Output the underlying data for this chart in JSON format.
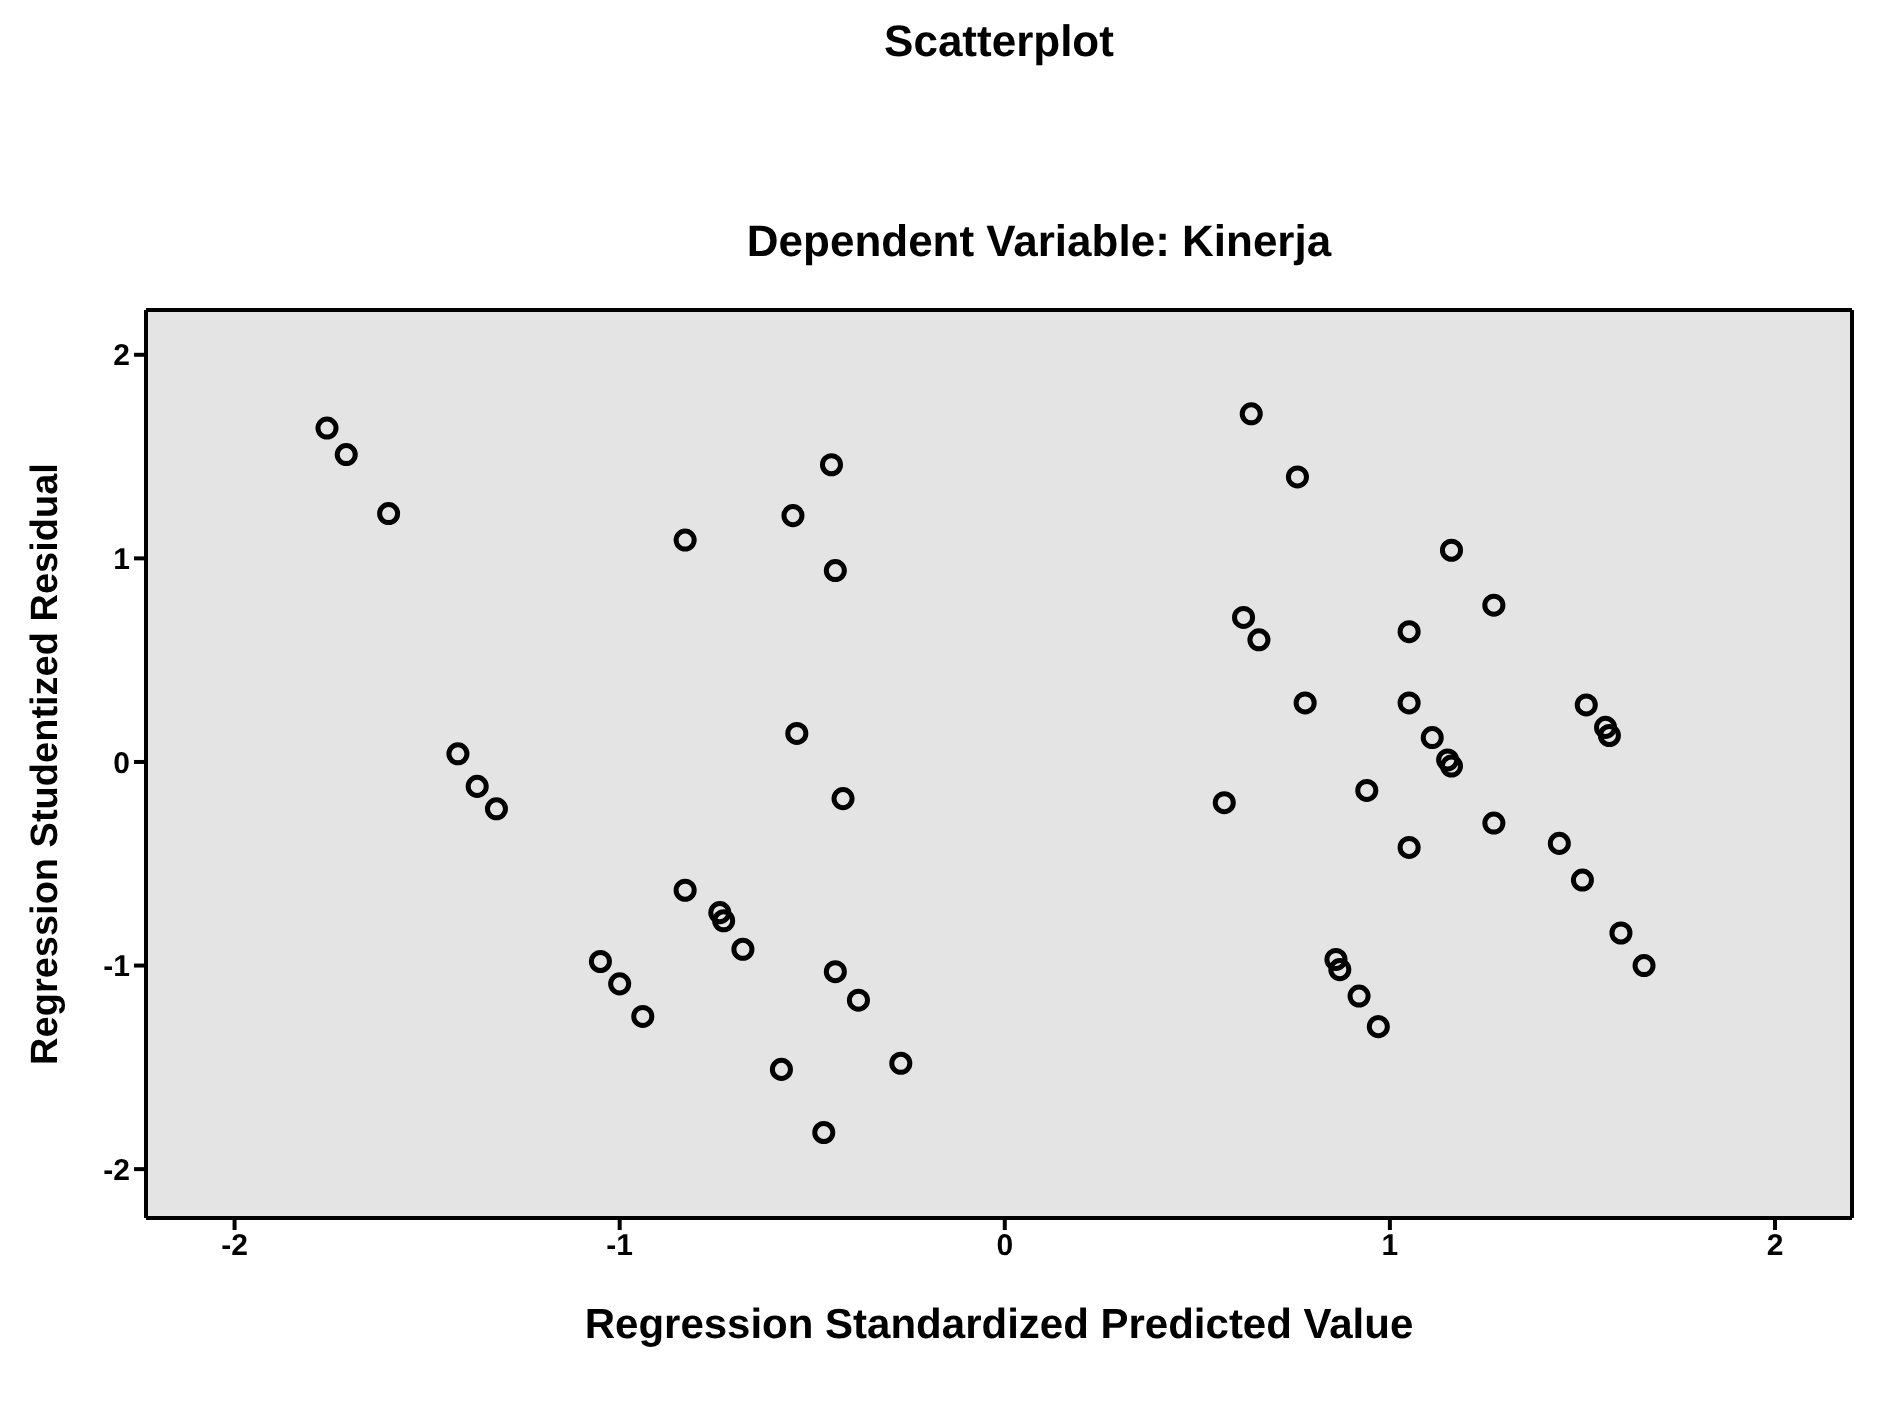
{
  "chart_data": {
    "type": "scatter",
    "title": "Scatterplot",
    "subtitle": "Dependent Variable: Kinerja",
    "xlabel": "Regression Standardized Predicted Value",
    "ylabel": "Regression Studentized Residual",
    "x": [
      -1.76,
      -1.71,
      -1.6,
      -1.42,
      -1.37,
      -1.32,
      -1.05,
      -1.0,
      -0.94,
      -0.83,
      -0.74,
      -0.73,
      -0.68,
      -0.83,
      -0.55,
      -0.45,
      -0.44,
      -0.54,
      -0.42,
      -0.44,
      -0.38,
      -0.58,
      -0.47,
      -0.27,
      0.64,
      0.76,
      1.16,
      1.27,
      0.62,
      0.66,
      1.05,
      0.78,
      1.05,
      1.51,
      1.56,
      1.57,
      1.11,
      1.15,
      1.16,
      0.57,
      0.94,
      1.27,
      1.05,
      1.44,
      1.5,
      1.6,
      1.66,
      0.86,
      0.87,
      0.92,
      0.97
    ],
    "series": [
      {
        "color": "#000000",
        "values": [
          1.64,
          1.51,
          1.22,
          0.04,
          -0.12,
          -0.23,
          -0.98,
          -1.09,
          -1.25,
          -0.63,
          -0.74,
          -0.78,
          -0.92,
          1.09,
          1.21,
          1.46,
          0.94,
          0.14,
          -0.18,
          -1.03,
          -1.17,
          -1.51,
          -1.82,
          -1.48,
          1.71,
          1.4,
          1.04,
          0.77,
          0.71,
          0.6,
          0.64,
          0.29,
          0.29,
          0.28,
          0.17,
          0.13,
          0.12,
          0.01,
          -0.02,
          -0.2,
          -0.14,
          -0.3,
          -0.42,
          -0.4,
          -0.58,
          -0.84,
          -1.0,
          -0.97,
          -1.02,
          -1.15,
          -1.3
        ]
      }
    ],
    "xlim": [
      -2.23,
      2.2
    ],
    "ylim": [
      -2.24,
      2.22
    ],
    "xticks": [
      -2,
      -1,
      0,
      1,
      2
    ],
    "yticks": [
      -2,
      -1,
      0,
      1,
      2
    ],
    "grid": false,
    "legend": false,
    "marker": "circle"
  }
}
